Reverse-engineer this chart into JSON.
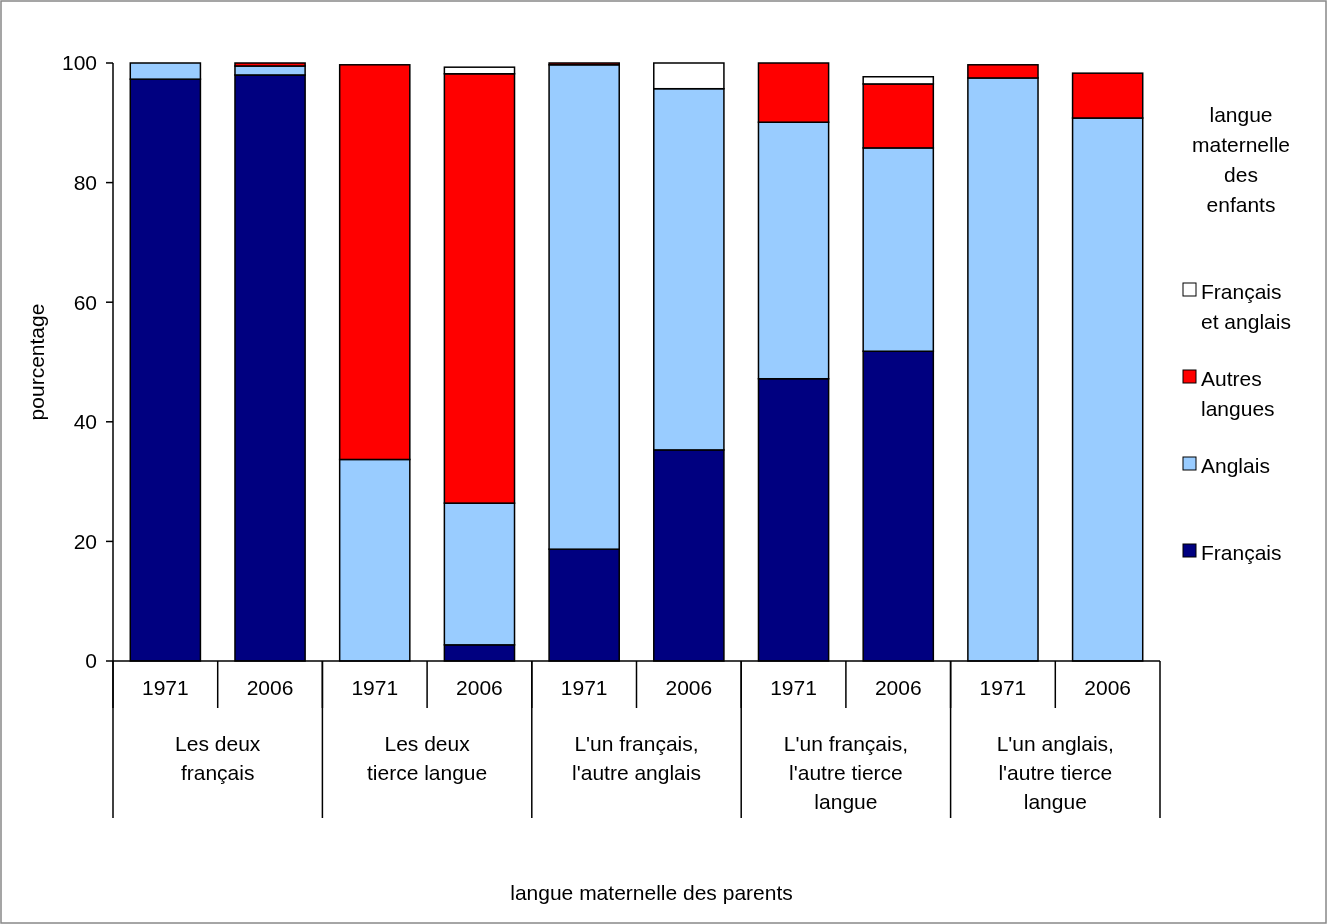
{
  "chart_data": {
    "type": "bar",
    "stacked": true,
    "ylabel": "pourcentage",
    "legend_title": "langue maternelle des enfants",
    "legend": "right",
    "ylim": [
      0,
      100
    ],
    "yticks": [
      0,
      20,
      40,
      60,
      80,
      100
    ],
    "grid": false,
    "categories": [
      "1971",
      "2006",
      "1971",
      "2006",
      "1971",
      "2006",
      "1971",
      "2006",
      "1971",
      "2006"
    ],
    "annotations": [
      "Les deux\nfrançais",
      "Les deux\ntierce langue",
      "L'un français,\nl'autre anglais",
      "L'un français,\nl'autre tierce\nlangue",
      "L'un anglais,\nl'autre tierce\nlangue",
      "langue maternelle des parents"
    ],
    "series": [
      {
        "name": "Français",
        "color": "#000080",
        "values": [
          97.3,
          98.0,
          0,
          2.7,
          18.7,
          35.3,
          47.2,
          51.8,
          0,
          0
        ]
      },
      {
        "name": "Anglais",
        "color": "#99ccff",
        "values": [
          2.7,
          1.5,
          33.7,
          23.7,
          81.0,
          60.4,
          42.9,
          34.0,
          97.5,
          90.8
        ]
      },
      {
        "name": "Autres langues",
        "color": "#ff0000",
        "values": [
          0,
          0.5,
          66.0,
          71.8,
          0.3,
          0,
          9.9,
          10.7,
          2.2,
          7.5
        ]
      },
      {
        "name": "Français et anglais",
        "color": "#ffffff",
        "values": [
          0,
          0,
          0,
          1.1,
          0,
          4.3,
          0,
          1.2,
          0,
          0
        ]
      }
    ]
  }
}
